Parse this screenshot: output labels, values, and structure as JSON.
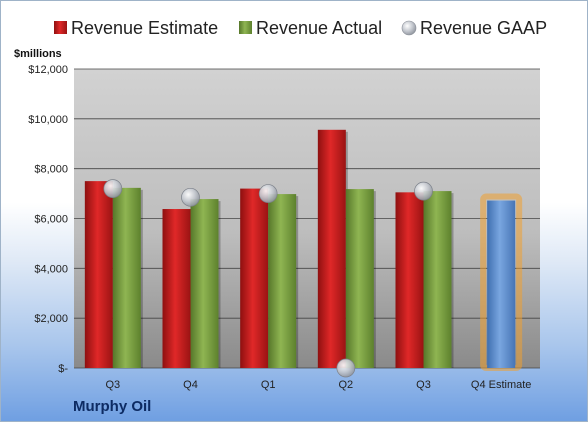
{
  "company_name": "Murphy Oil",
  "chart_data": {
    "type": "bar",
    "unit_label": "$millions",
    "categories": [
      "Q3",
      "Q4",
      "Q1",
      "Q2",
      "Q3",
      "Q4 Estimate"
    ],
    "ylim": [
      0,
      12000
    ],
    "y_ticks": [
      {
        "value": 0,
        "label": "$-"
      },
      {
        "value": 2000,
        "label": "$2,000"
      },
      {
        "value": 4000,
        "label": "$4,000"
      },
      {
        "value": 6000,
        "label": "$6,000"
      },
      {
        "value": 8000,
        "label": "$8,000"
      },
      {
        "value": 10000,
        "label": "$10,000"
      },
      {
        "value": 12000,
        "label": "$12,000"
      }
    ],
    "grid": true,
    "legend_position": "top",
    "series": [
      {
        "name": "Revenue Estimate",
        "kind": "bar",
        "color": "#cc1f1f",
        "values": [
          7500,
          6380,
          7200,
          9560,
          7050,
          null
        ]
      },
      {
        "name": "Revenue Actual",
        "kind": "bar",
        "color": "#7aa33f",
        "values": [
          7230,
          6780,
          6980,
          7180,
          7100,
          null
        ]
      },
      {
        "name": "Revenue GAAP",
        "kind": "marker",
        "color": "#b8bcc4",
        "values": [
          7200,
          6850,
          7000,
          0,
          7100,
          null
        ]
      }
    ],
    "estimate_bar": {
      "category_index": 5,
      "value": 6720,
      "color": "#5b8fd0",
      "glow": "#f0a030"
    }
  }
}
